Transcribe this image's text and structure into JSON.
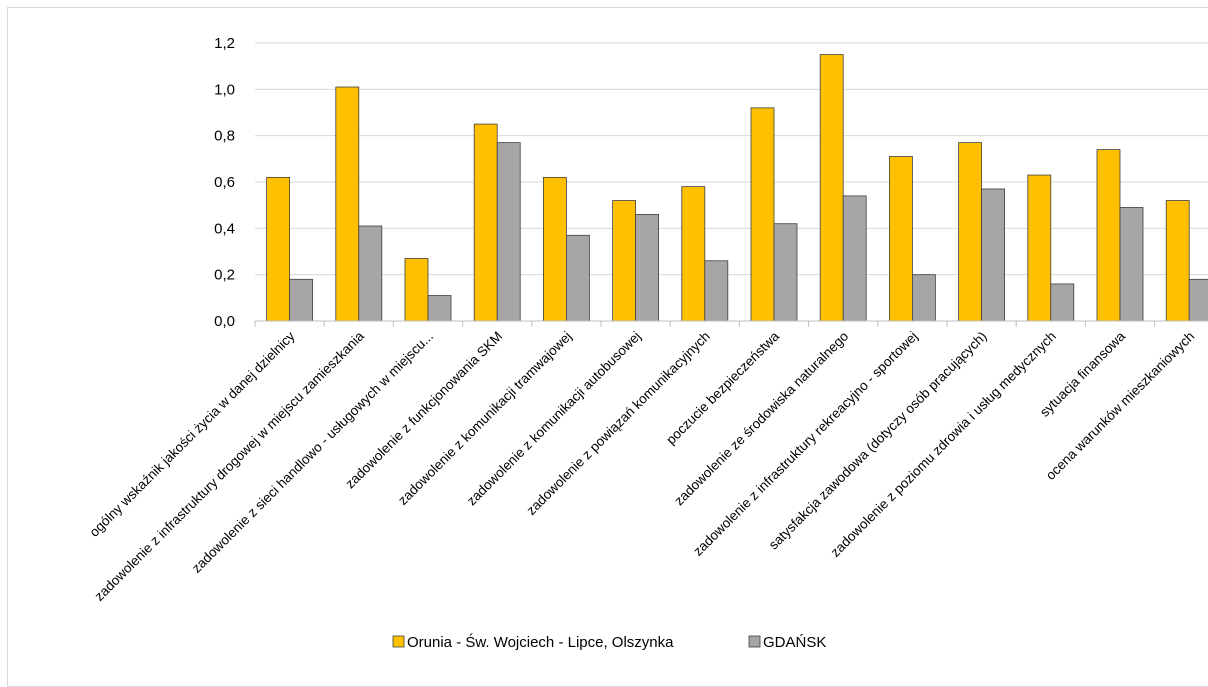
{
  "chart_data": {
    "type": "bar",
    "title": "",
    "xlabel": "",
    "ylabel": "",
    "ylim": [
      0,
      1.2
    ],
    "yticks": [
      "0,0",
      "0,2",
      "0,4",
      "0,6",
      "0,8",
      "1,0",
      "1,2"
    ],
    "ytick_values": [
      0,
      0.2,
      0.4,
      0.6,
      0.8,
      1.0,
      1.2
    ],
    "grid": true,
    "legend_position": "bottom",
    "categories": [
      "ogólny wskaźnik jakości życia w danej dzielnicy",
      "zadowolenie z infrastruktury drogowej w miejscu zamieszkania",
      "zadowolenie z sieci handlowo - usługowych  w miejscu...",
      "zadowolenie z funkcjonowania SKM",
      "zadowolenie z komunikacji tramwajowej",
      "zadowolenie z komunikacji autobusowej",
      "zadowolenie z powiązań komunikacyjnych",
      "poczucie bezpieczeństwa",
      "zadowolenie ze środowiska naturalnego",
      "zadowolenie z infrastruktury rekreacyjno - sportowej",
      "satysfakcja zawodowa (dotyczy osób pracujących)",
      "zadowolenie z poziomu zdrowia i usług medycznych",
      "sytuacja finansowa",
      "ocena warunków mieszkaniowych"
    ],
    "series": [
      {
        "name": "Orunia - Św. Wojciech - Lipce, Olszynka",
        "color": "#FFC000",
        "values": [
          0.62,
          1.01,
          0.27,
          0.85,
          0.62,
          0.52,
          0.58,
          0.92,
          1.15,
          0.71,
          0.77,
          0.63,
          0.74,
          0.52
        ]
      },
      {
        "name": "GDAŃSK",
        "color": "#A6A6A6",
        "values": [
          0.18,
          0.41,
          0.11,
          0.77,
          0.37,
          0.46,
          0.26,
          0.42,
          0.54,
          0.2,
          0.57,
          0.16,
          0.49,
          0.18
        ]
      }
    ]
  }
}
